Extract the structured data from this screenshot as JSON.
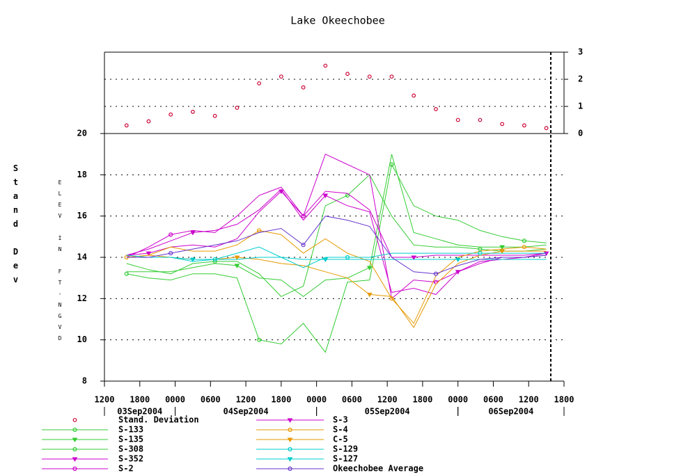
{
  "chart_data": [
    {
      "type": "scatter",
      "title": "Lake Okeechobee",
      "ylabel": "Stand Dev",
      "xlim": [
        0,
        78
      ],
      "x": [
        3.75,
        7.5,
        11.25,
        15,
        18.75,
        22.5,
        26.25,
        30,
        33.75,
        37.5,
        41.25,
        45,
        48.75,
        52.5,
        56.25,
        60,
        63.75,
        67.5,
        71.25,
        75
      ],
      "ylim": [
        0,
        3
      ],
      "yticks": [
        0,
        1,
        2,
        3
      ],
      "grid": true,
      "series": [
        {
          "name": "Stand. Deviation",
          "color": "#cc0033",
          "values": [
            0.3,
            0.45,
            0.7,
            0.8,
            0.65,
            0.95,
            1.85,
            2.1,
            1.7,
            2.5,
            2.2,
            2.1,
            2.1,
            1.4,
            0.9,
            0.5,
            0.5,
            0.35,
            0.3,
            0.2
          ]
        }
      ]
    },
    {
      "type": "line",
      "ylabel": "ELEV IN FT-NGVD",
      "xlim": [
        0,
        78
      ],
      "xticks": [
        {
          "value": 0,
          "label": "1200"
        },
        {
          "value": 6,
          "label": "1800"
        },
        {
          "value": 12,
          "label": "0000"
        },
        {
          "value": 18,
          "label": "0600"
        },
        {
          "value": 24,
          "label": "1200"
        },
        {
          "value": 30,
          "label": "1800"
        },
        {
          "value": 36,
          "label": "0000"
        },
        {
          "value": 42,
          "label": "0600"
        },
        {
          "value": 48,
          "label": "1200"
        },
        {
          "value": 54,
          "label": "1800"
        },
        {
          "value": 60,
          "label": "0000"
        },
        {
          "value": 66,
          "label": "0600"
        },
        {
          "value": 72,
          "label": "1200"
        },
        {
          "value": 78,
          "label": "1800"
        }
      ],
      "day_labels": [
        "03Sep2004",
        "04Sep2004",
        "05Sep2004",
        "06Sep2004"
      ],
      "x": [
        3.75,
        7.5,
        11.25,
        15,
        18.75,
        22.5,
        26.25,
        30,
        33.75,
        37.5,
        41.25,
        45,
        48.75,
        52.5,
        56.25,
        60,
        63.75,
        67.5,
        71.25,
        75
      ],
      "ylim": [
        8,
        20
      ],
      "yticks": [
        8,
        10,
        12,
        14,
        16,
        18,
        20
      ],
      "grid": true,
      "series": [
        {
          "name": "S-133",
          "color": "#33cc33",
          "values": [
            13.2,
            13.0,
            12.9,
            13.2,
            13.2,
            13.0,
            10.0,
            9.8,
            10.8,
            9.4,
            12.8,
            12.9,
            18.5,
            16.5,
            16.0,
            15.8,
            15.3,
            15.0,
            14.8,
            14.7
          ]
        },
        {
          "name": "S-135",
          "color": "#33cc33",
          "values": [
            13.3,
            13.3,
            13.3,
            13.5,
            13.7,
            13.6,
            13.0,
            12.9,
            12.1,
            12.9,
            13.0,
            13.5,
            19.0,
            15.2,
            14.9,
            14.6,
            14.5,
            14.5,
            14.5,
            14.6
          ]
        },
        {
          "name": "S-308",
          "color": "#33cc33",
          "values": [
            13.7,
            13.4,
            13.2,
            13.7,
            13.8,
            13.8,
            13.2,
            12.1,
            12.6,
            16.5,
            17.0,
            18.0,
            16.0,
            14.6,
            14.5,
            14.5,
            14.4,
            14.3,
            14.3,
            14.4
          ]
        },
        {
          "name": "S-352",
          "color": "#cc00cc",
          "values": [
            14.1,
            14.4,
            14.8,
            15.2,
            15.3,
            15.6,
            16.3,
            17.3,
            15.8,
            17.0,
            16.5,
            16.2,
            12.3,
            12.5,
            12.2,
            13.3,
            13.8,
            13.9,
            14.0,
            14.2
          ]
        },
        {
          "name": "S-2",
          "color": "#cc00cc",
          "values": [
            14.0,
            14.5,
            15.1,
            15.3,
            15.2,
            16.0,
            17.0,
            17.4,
            16.0,
            19.0,
            18.5,
            18.0,
            12.0,
            12.9,
            12.8,
            13.3,
            13.7,
            14.0,
            14.0,
            14.1
          ]
        },
        {
          "name": "S-3",
          "color": "#cc00cc",
          "values": [
            14.1,
            14.2,
            14.5,
            14.6,
            14.5,
            14.9,
            16.2,
            17.2,
            16.0,
            17.2,
            17.1,
            16.3,
            14.0,
            14.0,
            14.1,
            14.1,
            14.1,
            14.1,
            14.1,
            14.2
          ]
        },
        {
          "name": "S-4",
          "color": "#e69900",
          "values": [
            14.0,
            14.1,
            14.5,
            14.3,
            14.3,
            14.6,
            15.3,
            15.1,
            14.2,
            14.9,
            14.2,
            13.8,
            12.0,
            10.8,
            13.1,
            14.0,
            14.3,
            14.4,
            14.5,
            14.4
          ]
        },
        {
          "name": "C-5",
          "color": "#e69900",
          "values": [
            14.0,
            14.1,
            14.0,
            13.9,
            13.9,
            14.0,
            13.9,
            13.7,
            13.6,
            13.3,
            13.0,
            12.2,
            12.1,
            10.6,
            12.7,
            13.7,
            14.1,
            14.3,
            14.3,
            14.3
          ]
        },
        {
          "name": "S-129",
          "color": "#00cccc",
          "values": [
            14.1,
            14.0,
            14.0,
            13.8,
            13.9,
            14.2,
            14.5,
            14.0,
            13.5,
            14.0,
            14.0,
            14.0,
            14.2,
            14.2,
            14.2,
            14.2,
            14.2,
            14.2,
            14.2,
            14.2
          ]
        },
        {
          "name": "S-127",
          "color": "#00cccc",
          "values": [
            14.0,
            14.0,
            14.0,
            13.9,
            13.9,
            13.9,
            14.0,
            14.0,
            13.9,
            13.9,
            13.9,
            13.9,
            13.9,
            13.9,
            13.9,
            13.9,
            13.9,
            13.9,
            13.9,
            13.9
          ]
        },
        {
          "name": "Okeechobee Average",
          "color": "#6633cc",
          "values": [
            14.0,
            14.0,
            14.2,
            14.4,
            14.6,
            14.8,
            15.2,
            15.4,
            14.6,
            16.0,
            15.8,
            15.5,
            14.0,
            13.3,
            13.2,
            13.6,
            13.9,
            14.0,
            14.0,
            14.1
          ]
        }
      ]
    }
  ]
}
